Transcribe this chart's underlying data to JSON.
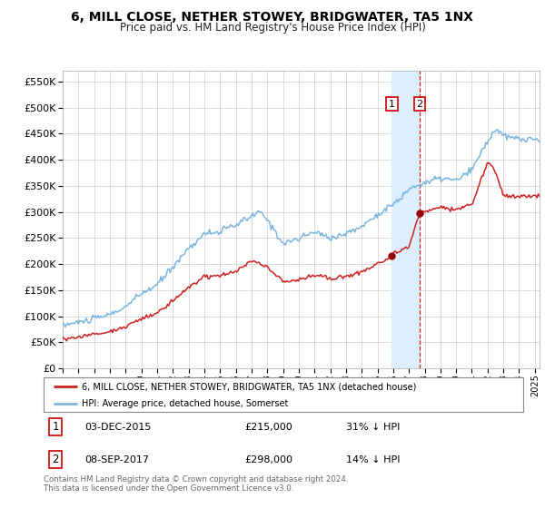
{
  "title": "6, MILL CLOSE, NETHER STOWEY, BRIDGWATER, TA5 1NX",
  "subtitle": "Price paid vs. HM Land Registry's House Price Index (HPI)",
  "legend_line1": "6, MILL CLOSE, NETHER STOWEY, BRIDGWATER, TA5 1NX (detached house)",
  "legend_line2": "HPI: Average price, detached house, Somerset",
  "transaction1_date": "03-DEC-2015",
  "transaction1_price": 215000,
  "transaction1_price_str": "£215,000",
  "transaction1_pct": "31% ↓ HPI",
  "transaction2_date": "08-SEP-2017",
  "transaction2_price": 298000,
  "transaction2_price_str": "£298,000",
  "transaction2_pct": "14% ↓ HPI",
  "footnote": "Contains HM Land Registry data © Crown copyright and database right 2024.\nThis data is licensed under the Open Government Licence v3.0.",
  "hpi_color": "#7ab5de",
  "price_color": "#cc2222",
  "transaction_marker_color": "#990000",
  "highlight_color": "#ddeeff",
  "dashed_line_color": "#cc2222",
  "grid_color": "#cccccc",
  "background_color": "#ffffff",
  "ylim": [
    0,
    570000
  ],
  "yticks": [
    0,
    50000,
    100000,
    150000,
    200000,
    250000,
    300000,
    350000,
    400000,
    450000,
    500000,
    550000
  ],
  "transaction1_x": 2015.92,
  "transaction2_x": 2017.69,
  "xmin": 1995,
  "xmax": 2025.3
}
